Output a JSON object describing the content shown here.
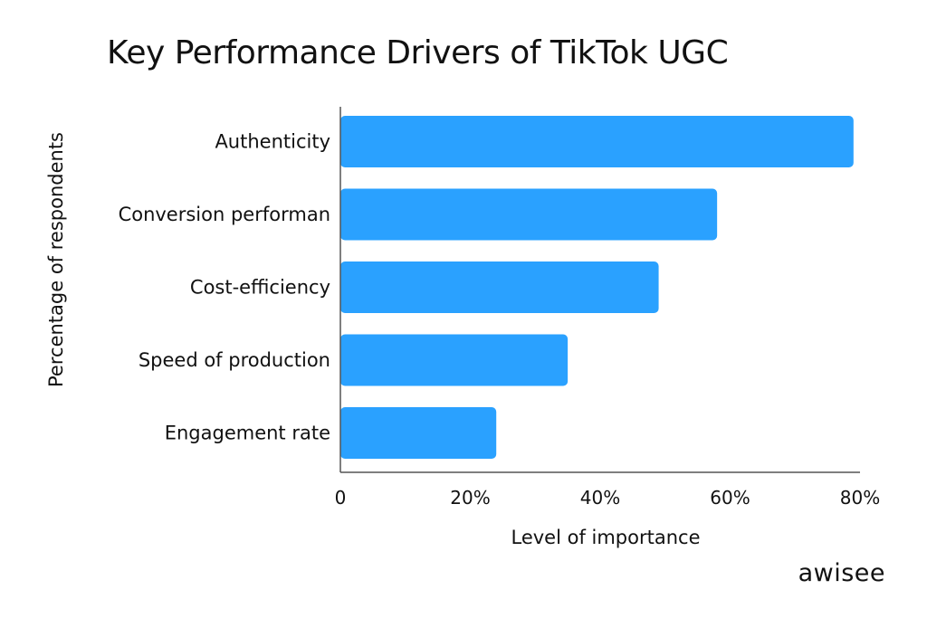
{
  "chart_data": {
    "type": "bar",
    "orientation": "horizontal",
    "title": "Key Performance Drivers of TikTok UGC",
    "xlabel": "Level of importance",
    "ylabel": "Percentage of respondents",
    "categories": [
      "Authenticity",
      "Conversion performan",
      "Cost-efficiency",
      "Speed of production",
      "Engagement rate"
    ],
    "values": [
      79,
      58,
      49,
      35,
      24
    ],
    "xlim": [
      0,
      80
    ],
    "xticks": [
      0,
      20,
      40,
      60,
      80
    ],
    "xtick_labels": [
      "0",
      "20%",
      "40%",
      "60%",
      "80%"
    ],
    "bar_color": "#2aa1ff",
    "grid": false,
    "legend": "none"
  },
  "branding": {
    "logo_text": "awisee"
  }
}
